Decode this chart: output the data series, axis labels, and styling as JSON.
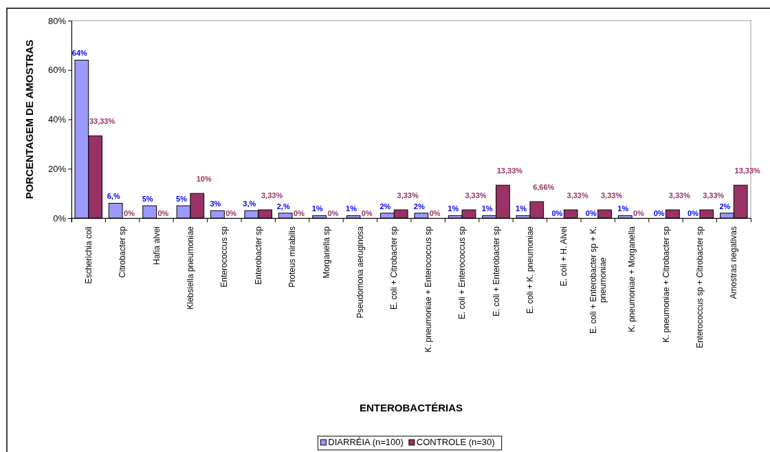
{
  "chart_data": {
    "type": "bar",
    "xlabel": "ENTEROBACTÉRIAS",
    "ylabel": "PORCENTAGEM DE AMOSTRAS",
    "categories": [
      "Escherichia coli",
      "Citrobacter sp",
      "Hafia alvei",
      "Klebsiella pneumoniae",
      "Enterococcus sp",
      "Enterobacter sp",
      "Proteus mirabilis",
      "Morganella sp",
      "Pseudomona aeruginosa",
      "E. coli + Citrobacter sp",
      "K. pneumoniae + Enterococcus sp",
      "E. coli + Enterococcus sp",
      "E. coli + Enterobacter sp",
      "E. coli + K. pneumoniae",
      "E. coli + H. Alvei",
      "E. coli + Enterobacter sp +  K. pneumoniae",
      "K. pneumoniae + Morganella",
      "K. pneumoniae + Citrobacter sp",
      "Enterococcus sp +  Citrobacter sp",
      "Amostras negativas"
    ],
    "series": [
      {
        "name": "DIARRÉIA (n=100)",
        "color": "#9999ff",
        "values": [
          64,
          6,
          5,
          5,
          3,
          3,
          2,
          1,
          1,
          2,
          2,
          1,
          1,
          1,
          0,
          0,
          1,
          0,
          0,
          2
        ],
        "value_labels": [
          "64%",
          "6,%",
          "5%",
          "5%",
          "3%",
          "3,%",
          "2,%",
          "1%",
          "1%",
          "2%",
          "2%",
          "1%",
          "1%",
          "1%",
          "0%",
          "0%",
          "1%",
          "0%",
          "0%",
          "2%"
        ]
      },
      {
        "name": "CONTROLE (n=30)",
        "color": "#993366",
        "values": [
          33.33,
          0,
          0,
          10,
          0,
          3.33,
          0,
          0,
          0,
          3.33,
          0,
          3.33,
          13.33,
          6.66,
          3.33,
          3.33,
          0,
          3.33,
          3.33,
          13.33
        ],
        "value_labels": [
          "33,33%",
          "0%",
          "0%",
          "10%",
          "0%",
          "3,33%",
          "0%",
          "0%",
          "0%",
          "3,33%",
          "0%",
          "3,33%",
          "13,33%",
          "6,66%",
          "3,33%",
          "3,33%",
          "0%",
          "3,33%",
          "3,33%",
          "13,33%"
        ]
      }
    ],
    "ylim": [
      0,
      80
    ],
    "yticks": [
      {
        "value": 0,
        "label": "0%"
      },
      {
        "value": 20,
        "label": "20%"
      },
      {
        "value": 40,
        "label": "40%"
      },
      {
        "value": 60,
        "label": "60%"
      },
      {
        "value": 80,
        "label": "80%"
      }
    ],
    "legend": "bottom"
  }
}
